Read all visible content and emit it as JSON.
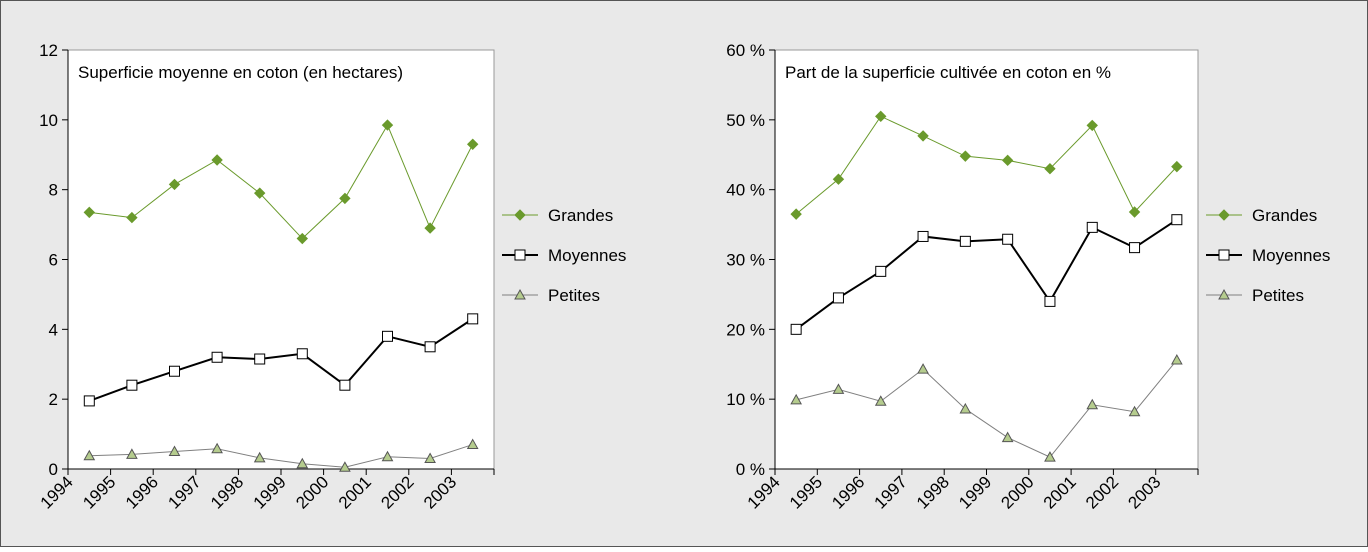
{
  "chart_data": [
    {
      "type": "line",
      "title": "Superficie moyenne en coton (en hectares)",
      "categories": [
        "1994",
        "1995",
        "1996",
        "1997",
        "1998",
        "1999",
        "2000",
        "2001",
        "2002",
        "2003"
      ],
      "ylim": [
        0,
        12
      ],
      "yticks": [
        0,
        2,
        4,
        6,
        8,
        10,
        12
      ],
      "legend": "right",
      "series": [
        {
          "name": "Grandes",
          "color": "#6a9a2c",
          "marker": "diamond",
          "marker_fill": "#6a9a2c",
          "line_width": 1,
          "values": [
            7.35,
            7.2,
            8.15,
            8.85,
            7.9,
            6.6,
            7.75,
            9.85,
            6.9,
            9.3
          ]
        },
        {
          "name": "Moyennes",
          "color": "#000000",
          "marker": "square",
          "marker_fill": "#ffffff",
          "line_width": 2,
          "values": [
            1.95,
            2.4,
            2.8,
            3.2,
            3.15,
            3.3,
            2.4,
            3.8,
            3.5,
            4.3
          ]
        },
        {
          "name": "Petites",
          "color": "#808080",
          "marker": "triangle",
          "marker_fill": "#b5cc8e",
          "line_width": 1,
          "values": [
            0.38,
            0.42,
            0.5,
            0.58,
            0.32,
            0.15,
            0.05,
            0.35,
            0.3,
            0.7
          ]
        }
      ]
    },
    {
      "type": "line",
      "title": "Part de la superficie cultivée en coton en %",
      "categories": [
        "1994",
        "1995",
        "1996",
        "1997",
        "1998",
        "1999",
        "2000",
        "2001",
        "2002",
        "2003"
      ],
      "ylim": [
        0,
        60
      ],
      "yticks": [
        {
          "value": 0,
          "label": "0 %"
        },
        {
          "value": 10,
          "label": "10 %"
        },
        {
          "value": 20,
          "label": "20 %"
        },
        {
          "value": 30,
          "label": "30 %"
        },
        {
          "value": 40,
          "label": "40 %"
        },
        {
          "value": 50,
          "label": "50 %"
        },
        {
          "value": 60,
          "label": "60 %"
        }
      ],
      "legend": "right",
      "series": [
        {
          "name": "Grandes",
          "color": "#6a9a2c",
          "marker": "diamond",
          "marker_fill": "#6a9a2c",
          "line_width": 1,
          "values": [
            36.5,
            41.5,
            50.5,
            47.7,
            44.8,
            44.2,
            43,
            49.2,
            36.8,
            43.3
          ]
        },
        {
          "name": "Moyennes",
          "color": "#000000",
          "marker": "square",
          "marker_fill": "#ffffff",
          "line_width": 2,
          "values": [
            20,
            24.5,
            28.3,
            33.3,
            32.6,
            32.9,
            24,
            34.6,
            31.7,
            35.7
          ]
        },
        {
          "name": "Petites",
          "color": "#808080",
          "marker": "triangle",
          "marker_fill": "#b5cc8e",
          "line_width": 1,
          "values": [
            9.9,
            11.4,
            9.7,
            14.3,
            8.6,
            4.5,
            1.7,
            9.2,
            8.2,
            15.6
          ]
        }
      ]
    }
  ]
}
